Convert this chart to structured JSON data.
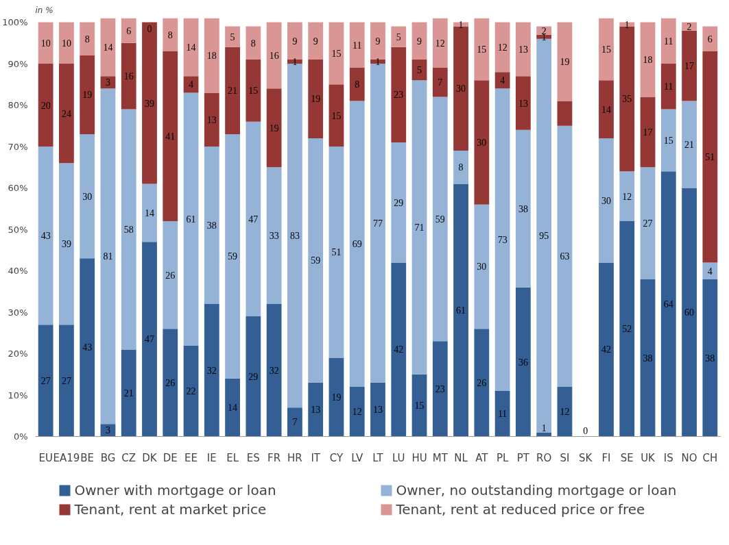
{
  "chart_data": {
    "type": "bar",
    "stacked": true,
    "ylabel": "in %",
    "categories": [
      "EU",
      "EA19",
      "BE",
      "BG",
      "CZ",
      "DK",
      "DE",
      "EE",
      "IE",
      "EL",
      "ES",
      "FR",
      "HR",
      "IT",
      "CY",
      "LV",
      "LT",
      "LU",
      "HU",
      "MT",
      "NL",
      "AT",
      "PL",
      "PT",
      "RO",
      "SI",
      "SK",
      "FI",
      "SE",
      "UK",
      "IS",
      "NO",
      "CH"
    ],
    "series": [
      {
        "name": "Owner with mortgage or loan",
        "color": "#335f94",
        "values": [
          27,
          27,
          43,
          3,
          21,
          47,
          26,
          22,
          32,
          14,
          29,
          32,
          7,
          13,
          19,
          12,
          13,
          42,
          15,
          23,
          61,
          26,
          11,
          36,
          1,
          12,
          0,
          42,
          52,
          38,
          64,
          60,
          38
        ],
        "value_labels": [
          "27",
          "27",
          "43",
          "3",
          "21",
          "47",
          "26",
          "22",
          "32",
          "14",
          "29",
          "32",
          "7",
          "13",
          "19",
          "12",
          "13",
          "42",
          "15",
          "23",
          "61",
          "26",
          "11",
          "36",
          "1",
          "12",
          "0",
          "42",
          "52",
          "38",
          "64",
          "60",
          "38"
        ]
      },
      {
        "name": "Owner, no outstanding mortgage or loan",
        "color": "#95b3d7",
        "values": [
          43,
          39,
          30,
          81,
          58,
          14,
          26,
          61,
          38,
          59,
          47,
          33,
          83,
          59,
          51,
          69,
          77,
          29,
          71,
          59,
          8,
          30,
          73,
          38,
          95,
          63,
          0,
          30,
          12,
          27,
          15,
          21,
          4
        ],
        "value_labels": [
          "43",
          "39",
          "30",
          "81",
          "58",
          "14",
          "26",
          "61",
          "38",
          "59",
          "47",
          "33",
          "83",
          "59",
          "51",
          "69",
          "77",
          "29",
          "71",
          "59",
          "8",
          "30",
          "73",
          "38",
          "95",
          "63",
          null,
          "30",
          "12",
          "27",
          "15",
          "21",
          "4"
        ]
      },
      {
        "name": "Tenant, rent at market price",
        "color": "#953735",
        "values": [
          20,
          24,
          19,
          3,
          16,
          39,
          41,
          4,
          13,
          21,
          15,
          19,
          1,
          19,
          15,
          8,
          1,
          23,
          5,
          7,
          30,
          30,
          4,
          13,
          1,
          6,
          0,
          14,
          35,
          17,
          11,
          17,
          51
        ],
        "value_labels": [
          "20",
          "24",
          "19",
          "3",
          "16",
          "39",
          "41",
          "4",
          "13",
          "21",
          "15",
          "19",
          "1",
          "19",
          "15",
          "8",
          "1",
          "23",
          "5",
          "7",
          "30",
          "30",
          "4",
          "13",
          "1",
          null,
          null,
          "14",
          "35",
          "17",
          "11",
          "17",
          "51"
        ]
      },
      {
        "name": "Tenant, rent at reduced price or free",
        "color": "#d99694",
        "values": [
          10,
          10,
          8,
          14,
          6,
          0,
          8,
          14,
          18,
          5,
          8,
          16,
          9,
          9,
          15,
          11,
          9,
          5,
          9,
          12,
          1,
          15,
          12,
          13,
          2,
          19,
          0,
          15,
          1,
          18,
          11,
          2,
          6
        ],
        "value_labels": [
          "10",
          "10",
          "8",
          "14",
          "6",
          "0",
          "8",
          "14",
          "18",
          "5",
          "8",
          "16",
          "9",
          "9",
          "15",
          "11",
          "9",
          "5",
          "9",
          "12",
          "1",
          "15",
          "12",
          "13",
          "2",
          "19",
          null,
          "15",
          "1",
          "18",
          "11",
          "2",
          "6"
        ]
      }
    ],
    "ylim": [
      0,
      101
    ],
    "yticks": [
      {
        "value": 0,
        "label": "0%"
      },
      {
        "value": 10,
        "label": "10%"
      },
      {
        "value": 20,
        "label": "20%"
      },
      {
        "value": 30,
        "label": "30%"
      },
      {
        "value": 40,
        "label": "40%"
      },
      {
        "value": 50,
        "label": "50%"
      },
      {
        "value": 60,
        "label": "60%"
      },
      {
        "value": 70,
        "label": "70%"
      },
      {
        "value": 80,
        "label": "80%"
      },
      {
        "value": 90,
        "label": "90%"
      },
      {
        "value": 100,
        "label": "100%"
      }
    ],
    "legend": "bottom"
  }
}
